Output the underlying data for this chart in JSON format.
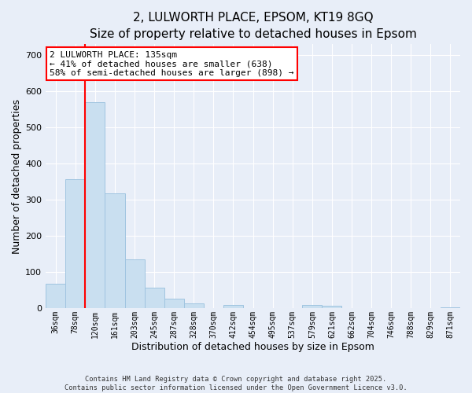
{
  "title1": "2, LULWORTH PLACE, EPSOM, KT19 8GQ",
  "title2": "Size of property relative to detached houses in Epsom",
  "xlabel": "Distribution of detached houses by size in Epsom",
  "ylabel": "Number of detached properties",
  "bar_labels": [
    "36sqm",
    "78sqm",
    "120sqm",
    "161sqm",
    "203sqm",
    "245sqm",
    "287sqm",
    "328sqm",
    "370sqm",
    "412sqm",
    "454sqm",
    "495sqm",
    "537sqm",
    "579sqm",
    "621sqm",
    "662sqm",
    "704sqm",
    "746sqm",
    "788sqm",
    "829sqm",
    "871sqm"
  ],
  "bar_values": [
    68,
    358,
    570,
    318,
    135,
    57,
    27,
    13,
    0,
    10,
    0,
    0,
    0,
    9,
    8,
    0,
    0,
    0,
    0,
    0,
    2
  ],
  "bar_color": "#c9dff0",
  "bar_edge_color": "#a0c4e0",
  "red_line_x": 2,
  "ylim": [
    0,
    730
  ],
  "yticks": [
    0,
    100,
    200,
    300,
    400,
    500,
    600,
    700
  ],
  "annotation_title": "2 LULWORTH PLACE: 135sqm",
  "annotation_line1": "← 41% of detached houses are smaller (638)",
  "annotation_line2": "58% of semi-detached houses are larger (898) →",
  "footer1": "Contains HM Land Registry data © Crown copyright and database right 2025.",
  "footer2": "Contains public sector information licensed under the Open Government Licence v3.0.",
  "background_color": "#e8eef8",
  "plot_bg_color": "#e8eef8",
  "title_fontsize": 11,
  "subtitle_fontsize": 10
}
